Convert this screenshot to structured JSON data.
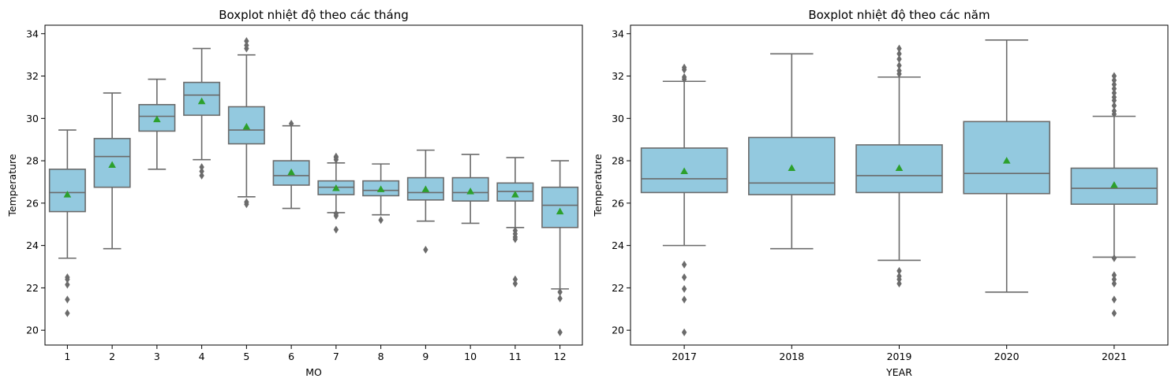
{
  "chart_data": [
    {
      "type": "box",
      "title": "Boxplot nhiệt độ theo các tháng",
      "xlabel": "MO",
      "ylabel": "Temperature",
      "ylim": [
        19.3,
        34.4
      ],
      "yticks": [
        20,
        22,
        24,
        26,
        28,
        30,
        32,
        34
      ],
      "colors": {
        "box": "#93c9df",
        "line": "#6b6b6b",
        "mean": "#2ca02c"
      },
      "categories": [
        "1",
        "2",
        "3",
        "4",
        "5",
        "6",
        "7",
        "8",
        "9",
        "10",
        "11",
        "12"
      ],
      "boxes": [
        {
          "whislo": 23.4,
          "q1": 25.6,
          "median": 26.5,
          "q3": 27.6,
          "whishi": 29.45,
          "mean": 26.4,
          "fliers": [
            22.5,
            22.4,
            22.15,
            21.45,
            20.8
          ]
        },
        {
          "whislo": 23.85,
          "q1": 26.75,
          "median": 28.2,
          "q3": 29.05,
          "whishi": 31.2,
          "mean": 27.8,
          "fliers": []
        },
        {
          "whislo": 27.6,
          "q1": 29.4,
          "median": 30.1,
          "q3": 30.65,
          "whishi": 31.85,
          "mean": 29.95,
          "fliers": []
        },
        {
          "whislo": 28.05,
          "q1": 30.15,
          "median": 31.1,
          "q3": 31.7,
          "whishi": 33.3,
          "mean": 30.8,
          "fliers": [
            27.7,
            27.5,
            27.3
          ]
        },
        {
          "whislo": 26.3,
          "q1": 28.8,
          "median": 29.45,
          "q3": 30.55,
          "whishi": 33.0,
          "mean": 29.6,
          "fliers": [
            26.05,
            25.95,
            33.3,
            33.45,
            33.65
          ]
        },
        {
          "whislo": 25.75,
          "q1": 26.85,
          "median": 27.3,
          "q3": 28.0,
          "whishi": 29.65,
          "mean": 27.45,
          "fliers": [
            29.75
          ]
        },
        {
          "whislo": 25.55,
          "q1": 26.4,
          "median": 26.75,
          "q3": 27.05,
          "whishi": 27.9,
          "mean": 26.7,
          "fliers": [
            25.5,
            25.4,
            24.75,
            28.05,
            28.15,
            28.2
          ]
        },
        {
          "whislo": 25.45,
          "q1": 26.35,
          "median": 26.6,
          "q3": 27.05,
          "whishi": 27.85,
          "mean": 26.65,
          "fliers": [
            25.2
          ]
        },
        {
          "whislo": 25.15,
          "q1": 26.15,
          "median": 26.5,
          "q3": 27.2,
          "whishi": 28.5,
          "mean": 26.65,
          "fliers": [
            23.8
          ]
        },
        {
          "whislo": 25.05,
          "q1": 26.1,
          "median": 26.5,
          "q3": 27.2,
          "whishi": 28.3,
          "mean": 26.55,
          "fliers": []
        },
        {
          "whislo": 24.85,
          "q1": 26.1,
          "median": 26.55,
          "q3": 26.95,
          "whishi": 28.15,
          "mean": 26.4,
          "fliers": [
            24.7,
            24.55,
            24.4,
            24.3,
            22.4,
            22.2
          ]
        },
        {
          "whislo": 21.95,
          "q1": 24.85,
          "median": 25.9,
          "q3": 26.75,
          "whishi": 28.0,
          "mean": 25.6,
          "fliers": [
            21.8,
            21.5,
            19.9
          ]
        }
      ]
    },
    {
      "type": "box",
      "title": "Boxplot nhiệt độ theo các năm",
      "xlabel": "YEAR",
      "ylabel": "Temperature",
      "ylim": [
        19.3,
        34.4
      ],
      "yticks": [
        20,
        22,
        24,
        26,
        28,
        30,
        32,
        34
      ],
      "colors": {
        "box": "#93c9df",
        "line": "#6b6b6b",
        "mean": "#2ca02c"
      },
      "categories": [
        "2017",
        "2018",
        "2019",
        "2020",
        "2021"
      ],
      "boxes": [
        {
          "whislo": 24.0,
          "q1": 26.5,
          "median": 27.15,
          "q3": 28.6,
          "whishi": 31.75,
          "mean": 27.5,
          "fliers": [
            31.85,
            31.95,
            32.3,
            32.4,
            23.1,
            22.5,
            21.95,
            21.45,
            19.9
          ]
        },
        {
          "whislo": 23.85,
          "q1": 26.4,
          "median": 26.95,
          "q3": 29.1,
          "whishi": 33.05,
          "mean": 27.65,
          "fliers": []
        },
        {
          "whislo": 23.3,
          "q1": 26.5,
          "median": 27.3,
          "q3": 28.75,
          "whishi": 31.95,
          "mean": 27.65,
          "fliers": [
            32.1,
            32.25,
            32.5,
            32.8,
            33.05,
            33.3,
            22.8,
            22.55,
            22.4,
            22.2
          ]
        },
        {
          "whislo": 21.8,
          "q1": 26.45,
          "median": 27.4,
          "q3": 29.85,
          "whishi": 33.7,
          "mean": 28.0,
          "fliers": []
        },
        {
          "whislo": 23.45,
          "q1": 25.95,
          "median": 26.7,
          "q3": 27.65,
          "whishi": 30.1,
          "mean": 26.85,
          "fliers": [
            30.2,
            30.35,
            30.6,
            30.85,
            31.0,
            31.2,
            31.4,
            31.6,
            31.8,
            32.0,
            23.4,
            22.6,
            22.4,
            22.2,
            21.45,
            20.8
          ]
        }
      ]
    }
  ]
}
